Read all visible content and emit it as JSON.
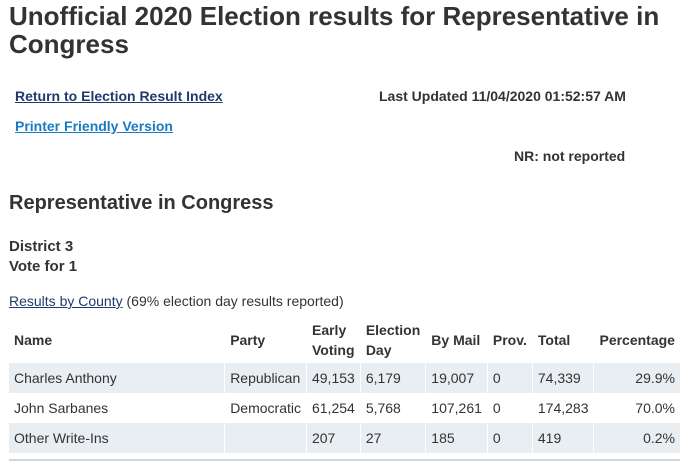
{
  "page": {
    "title": "Unofficial 2020 Election results for Representative in Congress"
  },
  "links": {
    "index": "Return to Election Result Index",
    "printer": "Printer Friendly Version"
  },
  "last_updated": "Last Updated 11/04/2020 01:52:57 AM",
  "nr_note": "NR: not reported",
  "section": {
    "heading": "Representative in Congress",
    "district": "District 3",
    "vote_for": "Vote for 1",
    "results_link": "Results by County",
    "results_note": "(69% election day results reported)"
  },
  "table": {
    "headers": {
      "name": "Name",
      "party": "Party",
      "early_line1": "Early",
      "early_line2": "Voting",
      "eday_line1": "Election",
      "eday_line2": "Day",
      "mail": "By Mail",
      "prov": "Prov.",
      "total": "Total",
      "pct": "Percentage"
    },
    "rows": [
      {
        "name": "Charles Anthony",
        "party": "Republican",
        "early": "49,153",
        "eday": "6,179",
        "mail": "19,007",
        "prov": "0",
        "total": "74,339",
        "pct": "29.9%"
      },
      {
        "name": "John Sarbanes",
        "party": "Democratic",
        "early": "61,254",
        "eday": "5,768",
        "mail": "107,261",
        "prov": "0",
        "total": "174,283",
        "pct": "70.0%"
      },
      {
        "name": "Other Write-Ins",
        "party": "",
        "early": "207",
        "eday": "27",
        "mail": "185",
        "prov": "0",
        "total": "419",
        "pct": "0.2%"
      }
    ]
  },
  "colors": {
    "text": "#333333",
    "link_dark": "#1f3b6e",
    "link_blue": "#1a7ac0",
    "row_stripe": "#e9eef3"
  }
}
